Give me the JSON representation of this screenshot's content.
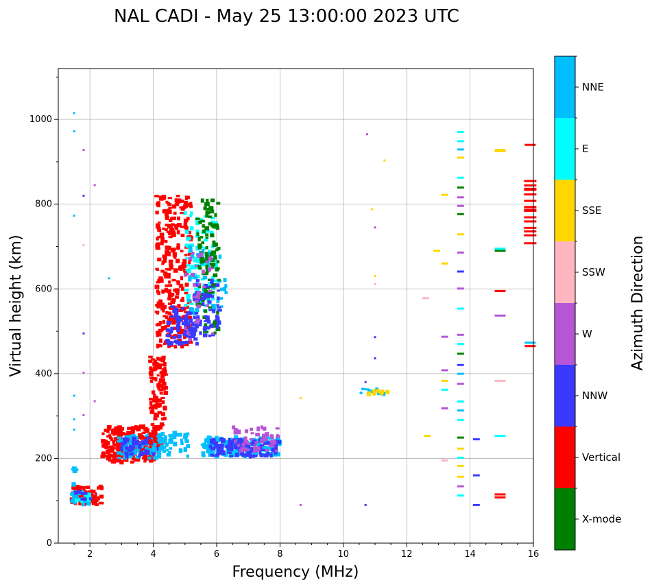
{
  "chart_data": {
    "type": "scatter",
    "title": "NAL CADI - May 25 13:00:00 2023 UTC",
    "xlabel": "Frequency (MHz)",
    "ylabel": "Virtual height (km)",
    "xlim": [
      1,
      16
    ],
    "ylim": [
      0,
      1120
    ],
    "xticks": [
      2,
      4,
      6,
      8,
      10,
      12,
      14,
      16
    ],
    "yticks": [
      0,
      200,
      400,
      600,
      800,
      1000
    ],
    "xticks_minor": [
      1.5,
      2.5,
      3,
      3.5,
      4.5,
      5,
      5.5,
      6.5,
      7,
      7.5,
      8.5,
      9,
      9.5,
      10.5,
      11,
      11.5,
      12.5,
      13,
      13.5,
      14.5,
      15,
      15.5
    ],
    "yticks_minor": [
      100,
      300,
      500,
      700,
      900,
      1100
    ],
    "grid": true,
    "colorbar": {
      "title": "Azimuth Direction",
      "categories": [
        "X-mode",
        "Vertical",
        "NNW",
        "W",
        "SSW",
        "SSE",
        "E",
        "NNE"
      ],
      "colors": [
        "#008000",
        "#ff0000",
        "#3a3aff",
        "#b655d6",
        "#ffb6c1",
        "#ffd700",
        "#00ffff",
        "#00bfff"
      ]
    },
    "clusters": [
      {
        "direction": "Vertical",
        "x": [
          1.4,
          2.4
        ],
        "y": [
          90,
          135
        ],
        "count": 70
      },
      {
        "direction": "NNE",
        "x": [
          1.4,
          2.0
        ],
        "y": [
          90,
          120
        ],
        "count": 25
      },
      {
        "direction": "E",
        "x": [
          1.5,
          2.0
        ],
        "y": [
          95,
          115
        ],
        "count": 10
      },
      {
        "direction": "NNW",
        "x": [
          1.5,
          2.1
        ],
        "y": [
          90,
          130
        ],
        "count": 8
      },
      {
        "direction": "NNE",
        "x": [
          1.45,
          1.6
        ],
        "y": [
          120,
          180
        ],
        "count": 6
      },
      {
        "direction": "Vertical",
        "x": [
          2.4,
          4.1
        ],
        "y": [
          190,
          275
        ],
        "count": 260
      },
      {
        "direction": "NNE",
        "x": [
          2.9,
          4.2
        ],
        "y": [
          200,
          255
        ],
        "count": 90
      },
      {
        "direction": "NNW",
        "x": [
          3.0,
          4.2
        ],
        "y": [
          205,
          250
        ],
        "count": 50
      },
      {
        "direction": "Vertical",
        "x": [
          3.9,
          4.4
        ],
        "y": [
          220,
          440
        ],
        "count": 120
      },
      {
        "direction": "NNE",
        "x": [
          4.0,
          5.1
        ],
        "y": [
          205,
          260
        ],
        "count": 50
      },
      {
        "direction": "Vertical",
        "x": [
          4.1,
          5.2
        ],
        "y": [
          460,
          820
        ],
        "count": 290
      },
      {
        "direction": "NNW",
        "x": [
          4.4,
          5.4
        ],
        "y": [
          470,
          560
        ],
        "count": 70
      },
      {
        "direction": "E",
        "x": [
          5.0,
          6.0
        ],
        "y": [
          560,
          780
        ],
        "count": 90
      },
      {
        "direction": "NNE",
        "x": [
          5.1,
          6.3
        ],
        "y": [
          540,
          700
        ],
        "count": 50
      },
      {
        "direction": "X-mode",
        "x": [
          5.4,
          6.1
        ],
        "y": [
          490,
          810
        ],
        "count": 110
      },
      {
        "direction": "NNW",
        "x": [
          5.3,
          6.1
        ],
        "y": [
          480,
          620
        ],
        "count": 60
      },
      {
        "direction": "W",
        "x": [
          5.0,
          6.0
        ],
        "y": [
          480,
          700
        ],
        "count": 30
      },
      {
        "direction": "NNE",
        "x": [
          5.5,
          8.0
        ],
        "y": [
          205,
          250
        ],
        "count": 170
      },
      {
        "direction": "NNW",
        "x": [
          5.8,
          8.0
        ],
        "y": [
          205,
          245
        ],
        "count": 110
      },
      {
        "direction": "W",
        "x": [
          6.5,
          8.0
        ],
        "y": [
          215,
          275
        ],
        "count": 50
      },
      {
        "direction": "NNE",
        "x": [
          10.5,
          11.4
        ],
        "y": [
          350,
          365
        ],
        "count": 8
      },
      {
        "direction": "SSE",
        "x": [
          10.6,
          11.4
        ],
        "y": [
          350,
          362
        ],
        "count": 10
      }
    ],
    "columns": [
      {
        "x": 13.7,
        "y": [
          90,
          1020
        ],
        "directions": [
          "NNW",
          "NNE",
          "W",
          "X-mode",
          "E",
          "SSE"
        ]
      },
      {
        "x": 15.9,
        "y": [
          695,
          850
        ],
        "directions": [
          "Vertical"
        ]
      }
    ]
  }
}
